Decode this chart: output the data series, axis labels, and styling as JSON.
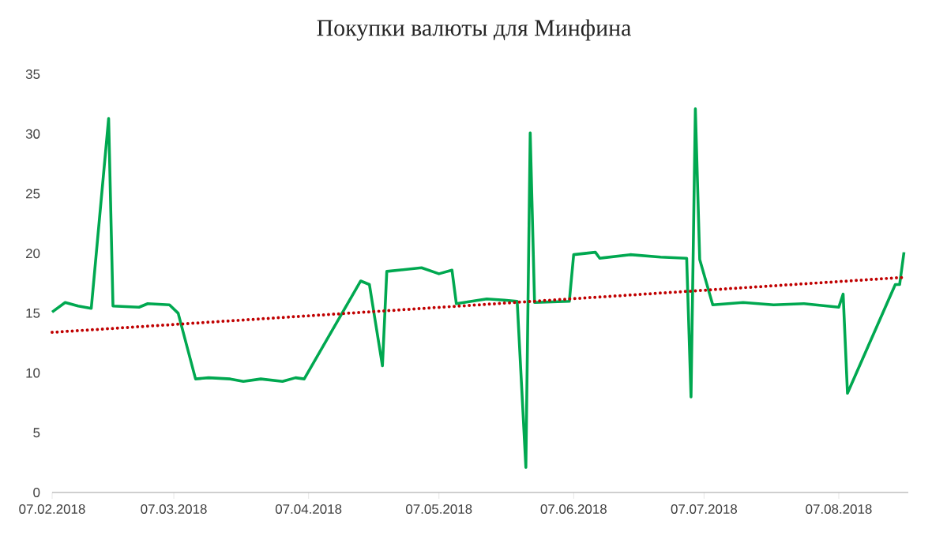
{
  "chart_data": {
    "type": "line",
    "title": "Покупки валюты для Минфина",
    "xlim": [
      "2018-02-07",
      "2018-08-23"
    ],
    "xticks": [
      {
        "value": "2018-02-07",
        "label": "07.02.2018"
      },
      {
        "value": "2018-03-07",
        "label": "07.03.2018"
      },
      {
        "value": "2018-04-07",
        "label": "07.04.2018"
      },
      {
        "value": "2018-05-07",
        "label": "07.05.2018"
      },
      {
        "value": "2018-06-07",
        "label": "07.06.2018"
      },
      {
        "value": "2018-07-07",
        "label": "07.07.2018"
      },
      {
        "value": "2018-08-07",
        "label": "07.08.2018"
      }
    ],
    "ylim": [
      0,
      35
    ],
    "yticks": [
      0,
      5,
      10,
      15,
      20,
      25,
      30,
      35
    ],
    "series": [
      {
        "color": "#00a850",
        "line_style": "solid",
        "x": [
          "2018-02-07",
          "2018-02-10",
          "2018-02-13",
          "2018-02-16",
          "2018-02-20",
          "2018-02-21",
          "2018-02-27",
          "2018-03-01",
          "2018-03-06",
          "2018-03-08",
          "2018-03-12",
          "2018-03-15",
          "2018-03-20",
          "2018-03-23",
          "2018-03-27",
          "2018-04-01",
          "2018-04-04",
          "2018-04-06",
          "2018-04-19",
          "2018-04-21",
          "2018-04-24",
          "2018-04-25",
          "2018-05-03",
          "2018-05-07",
          "2018-05-10",
          "2018-05-11",
          "2018-05-18",
          "2018-05-22",
          "2018-05-25",
          "2018-05-27",
          "2018-05-28",
          "2018-05-29",
          "2018-06-06",
          "2018-06-07",
          "2018-06-12",
          "2018-06-13",
          "2018-06-20",
          "2018-06-27",
          "2018-07-03",
          "2018-07-04",
          "2018-07-05",
          "2018-07-06",
          "2018-07-09",
          "2018-07-16",
          "2018-07-23",
          "2018-07-30",
          "2018-08-07",
          "2018-08-08",
          "2018-08-09",
          "2018-08-20",
          "2018-08-21",
          "2018-08-22"
        ],
        "values": [
          15.1,
          15.9,
          15.6,
          15.4,
          31.3,
          15.6,
          15.5,
          15.8,
          15.7,
          15.0,
          9.5,
          9.6,
          9.5,
          9.3,
          9.5,
          9.3,
          9.6,
          9.5,
          17.7,
          17.4,
          10.6,
          18.5,
          18.8,
          18.3,
          18.6,
          15.8,
          16.2,
          16.1,
          16.0,
          2.1,
          30.1,
          15.9,
          16.0,
          19.9,
          20.1,
          19.6,
          19.9,
          19.7,
          19.6,
          8.0,
          32.1,
          19.5,
          15.7,
          15.9,
          15.7,
          15.8,
          15.5,
          16.6,
          8.3,
          17.4,
          17.4,
          20.1
        ]
      },
      {
        "color": "#c00000",
        "line_style": "dotted",
        "x": [
          "2018-02-07",
          "2018-08-22"
        ],
        "values": [
          13.4,
          18.0
        ]
      }
    ]
  }
}
